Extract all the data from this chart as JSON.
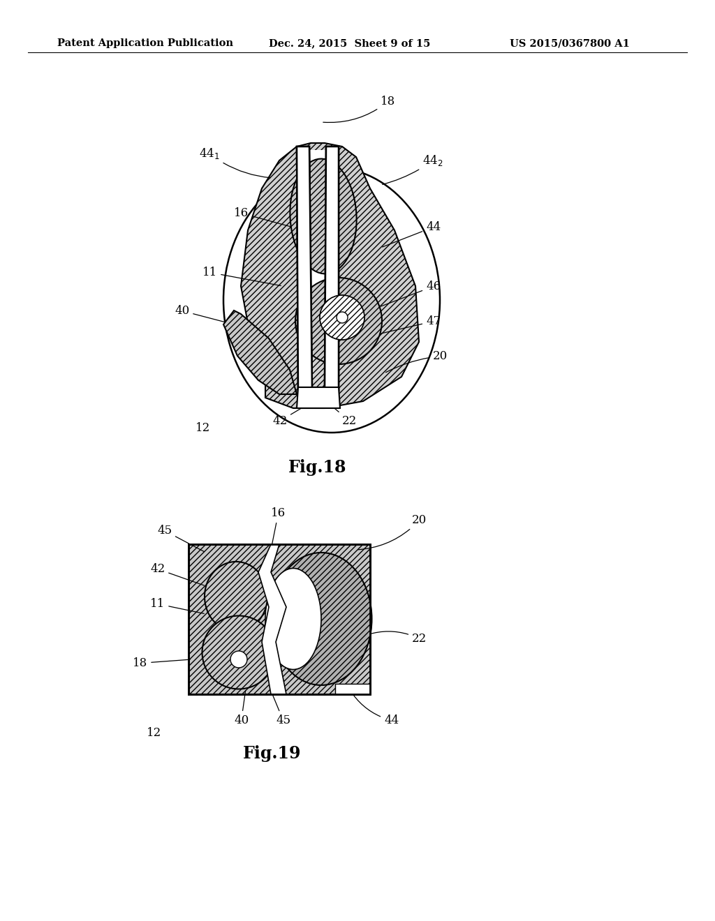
{
  "background_color": "#ffffff",
  "header_left": "Patent Application Publication",
  "header_center": "Dec. 24, 2015  Sheet 9 of 15",
  "header_right": "US 2015/0367800 A1",
  "fig18_label": "Fig.18",
  "fig19_label": "Fig.19",
  "header_font_size": 10.5,
  "label_font_size": 17,
  "anno_font_size": 12
}
